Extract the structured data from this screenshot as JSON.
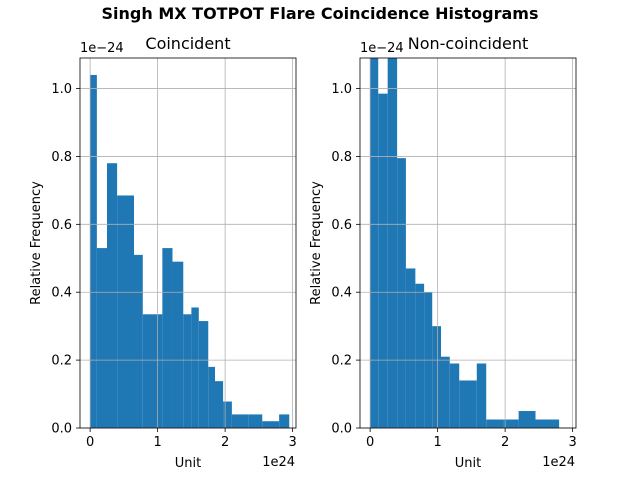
{
  "figure": {
    "suptitle": "Singh MX TOTPOT Flare Coincidence Histograms"
  },
  "chart_data": [
    {
      "type": "bar",
      "title": "Coincident",
      "xlabel": "Unit",
      "ylabel": "Relative Frequency",
      "x_offset_text": "1e24",
      "y_offset_text": "1e−24",
      "xlim": [
        -0.15,
        3.05
      ],
      "ylim": [
        0,
        1.09
      ],
      "xticks": [
        0,
        1,
        2,
        3
      ],
      "xtick_labels": [
        "0",
        "1",
        "2",
        "3"
      ],
      "yticks": [
        0,
        0.2,
        0.4,
        0.6,
        0.8,
        1.0
      ],
      "ytick_labels": [
        "0.0",
        "0.2",
        "0.4",
        "0.6",
        "0.8",
        "1.0"
      ],
      "grid": true,
      "color": "#1f77b4",
      "bin_edges": [
        0,
        0.1,
        0.25,
        0.4,
        0.65,
        0.78,
        1.0,
        1.07,
        1.22,
        1.38,
        1.5,
        1.61,
        1.75,
        1.85,
        1.97,
        2.1,
        2.35,
        2.55,
        2.8,
        2.95
      ],
      "values": [
        1.04,
        0.53,
        0.78,
        0.685,
        0.51,
        0.335,
        0.335,
        0.53,
        0.49,
        0.335,
        0.355,
        0.315,
        0.18,
        0.138,
        0.078,
        0.04,
        0.04,
        0.02,
        0.04
      ]
    },
    {
      "type": "bar",
      "title": "Non-coincident",
      "xlabel": "Unit",
      "ylabel": "Relative Frequency",
      "x_offset_text": "1e24",
      "y_offset_text": "1e−24",
      "xlim": [
        -0.15,
        3.05
      ],
      "ylim": [
        0,
        1.09
      ],
      "xticks": [
        0,
        1,
        2,
        3
      ],
      "xtick_labels": [
        "0",
        "1",
        "2",
        "3"
      ],
      "yticks": [
        0,
        0.2,
        0.4,
        0.6,
        0.8,
        1.0
      ],
      "ytick_labels": [
        "0.0",
        "0.2",
        "0.4",
        "0.6",
        "0.8",
        "1.0"
      ],
      "grid": true,
      "color": "#1f77b4",
      "bin_edges": [
        0,
        0.12,
        0.26,
        0.4,
        0.53,
        0.67,
        0.8,
        0.92,
        1.05,
        1.18,
        1.32,
        1.45,
        1.58,
        1.72,
        1.97,
        2.2,
        2.45,
        2.8
      ],
      "values": [
        1.09,
        0.985,
        1.09,
        0.795,
        0.47,
        0.425,
        0.4,
        0.3,
        0.21,
        0.19,
        0.14,
        0.14,
        0.19,
        0.025,
        0.025,
        0.05,
        0.025
      ]
    }
  ]
}
